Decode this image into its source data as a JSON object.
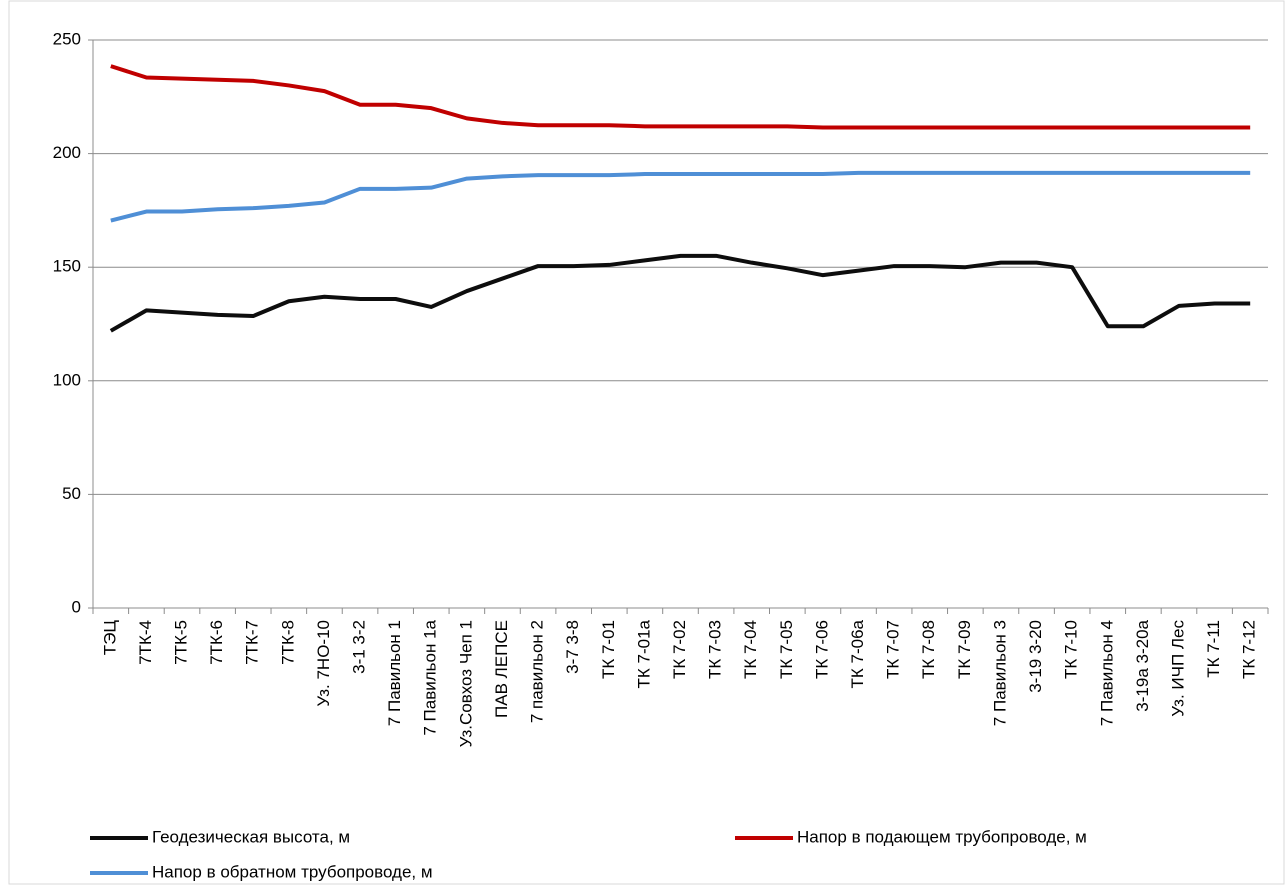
{
  "chart_data": {
    "type": "line",
    "categories": [
      "ТЭЦ",
      "7ТК-4",
      "7ТК-5",
      "7ТК-6",
      "7ТК-7",
      "7ТК-8",
      "Уз. 7НО-10",
      "3-1 3-2",
      "7 Павильон 1",
      "7 Павильон 1а",
      "Уз.Совхоз Чеп 1",
      "ПАВ ЛЕПСЕ",
      "7 павильон 2",
      "3-7 3-8",
      "ТК 7-01",
      "ТК 7-01а",
      "ТК 7-02",
      "ТК 7-03",
      "ТК 7-04",
      "ТК 7-05",
      "ТК 7-06",
      "ТК 7-06а",
      "ТК 7-07",
      "ТК 7-08",
      "ТК 7-09",
      "7 Павильон 3",
      "3-19 3-20",
      "ТК 7-10",
      "7 Павильон 4",
      "3-19а 3-20а",
      "Уз. ИЧП Лес",
      "ТК 7-11",
      "ТК 7-12"
    ],
    "series": [
      {
        "name": "Геодезическая высота, м",
        "color": "#0d0d0d",
        "values": [
          122,
          131,
          130,
          129,
          128.5,
          135,
          137,
          136,
          136,
          132.5,
          139.5,
          145,
          150.5,
          150.5,
          151,
          153,
          155,
          155,
          152,
          149.5,
          146.5,
          148.5,
          150.5,
          150.5,
          150,
          152,
          152,
          150,
          124,
          124,
          133,
          134,
          134
        ]
      },
      {
        "name": "Напор в подающем трубопроводе, м",
        "color": "#c00000",
        "values": [
          238.5,
          233.5,
          233,
          232.5,
          232,
          230,
          227.5,
          221.5,
          221.5,
          220,
          215.5,
          213.5,
          212.5,
          212.5,
          212.5,
          212,
          212,
          212,
          212,
          212,
          211.5,
          211.5,
          211.5,
          211.5,
          211.5,
          211.5,
          211.5,
          211.5,
          211.5,
          211.5,
          211.5,
          211.5,
          211.5
        ]
      },
      {
        "name": "Напор в обратном трубопроводе, м",
        "color": "#4f8fd6",
        "values": [
          170.5,
          174.5,
          174.5,
          175.5,
          176,
          177,
          178.5,
          184.5,
          184.5,
          185,
          189,
          190,
          190.5,
          190.5,
          190.5,
          191,
          191,
          191,
          191,
          191,
          191,
          191.5,
          191.5,
          191.5,
          191.5,
          191.5,
          191.5,
          191.5,
          191.5,
          191.5,
          191.5,
          191.5,
          191.5
        ]
      }
    ],
    "ylim": [
      0,
      250
    ],
    "yticks": [
      0,
      50,
      100,
      150,
      200,
      250
    ],
    "grid": true,
    "legend": "bottom"
  }
}
